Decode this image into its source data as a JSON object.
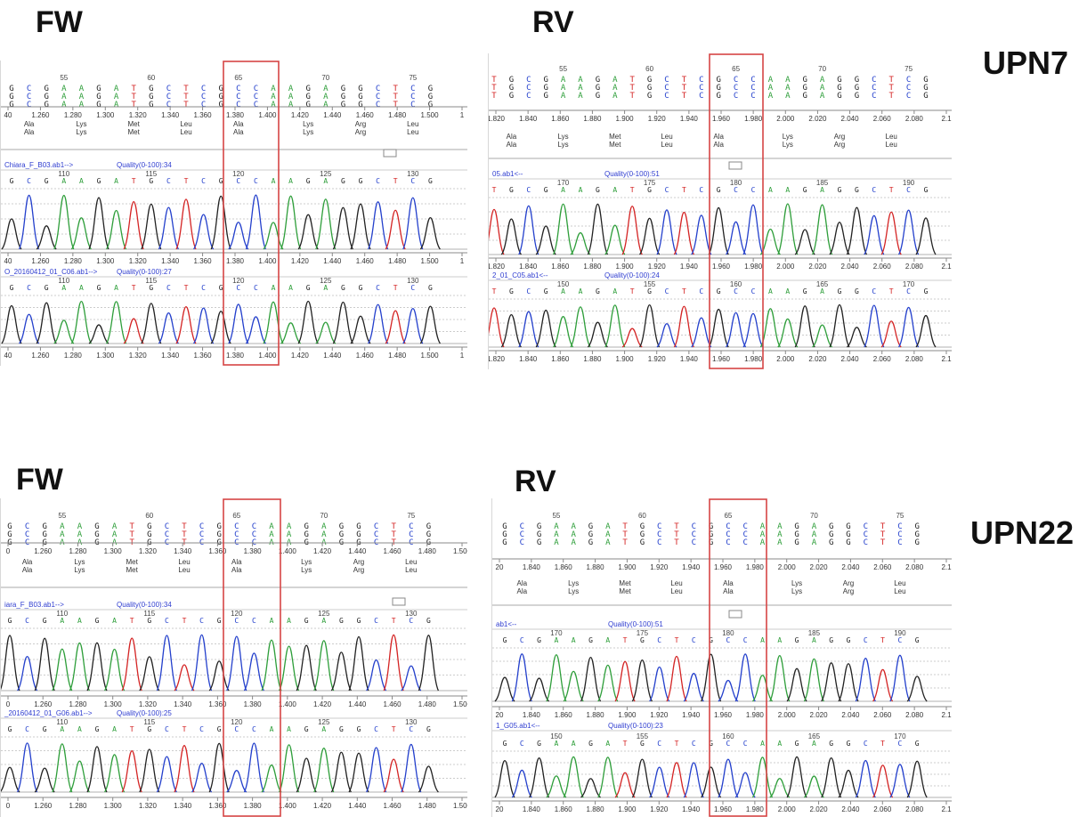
{
  "labels": {
    "fw": "FW",
    "rv": "RV",
    "upn7": "UPN7",
    "upn22": "UPN22"
  },
  "colors": {
    "A": "#2e9e3a",
    "C": "#2440cc",
    "G": "#222222",
    "T": "#d42424",
    "highlight_box": "#d64545",
    "blue_text": "#2f3dd0"
  },
  "sequence": {
    "fw_ref": "GCGAAGATGCTCGCCAAGAGGCTCG",
    "rv_ref": "TGCGAAGATGCTCGCCAAGAGGCTCG",
    "aminos": [
      "Ala",
      "Lys",
      "Met",
      "Leu",
      "Ala",
      "Lys",
      "Arg",
      "Leu"
    ]
  },
  "panels": [
    {
      "id": "upn7-fw",
      "ref_ticks": [
        "55",
        "60",
        "65",
        "70",
        "75"
      ],
      "axis": [
        "40",
        "1.260",
        "1.280",
        "1.300",
        "1.320",
        "1.340",
        "1.360",
        "1.380",
        "1.400",
        "1.420",
        "1.440",
        "1.460",
        "1.480",
        "1.500",
        "1"
      ],
      "trace1": {
        "file": "Chiara_F_B03.ab1-->",
        "quality": "Quality(0-100):34",
        "ticks": [
          "110",
          "115",
          "120",
          "125",
          "130"
        ]
      },
      "trace2": {
        "file": "O_20160412_01_C06.ab1-->",
        "quality": "Quality(0-100):27",
        "ticks": [
          "110",
          "115",
          "120",
          "125",
          "130"
        ]
      }
    },
    {
      "id": "upn7-rv",
      "ref_ticks": [
        "55",
        "60",
        "65",
        "70",
        "75"
      ],
      "axis": [
        "1.820",
        "1.840",
        "1.860",
        "1.880",
        "1.900",
        "1.920",
        "1.940",
        "1.960",
        "1.980",
        "2.000",
        "2.020",
        "2.040",
        "2.060",
        "2.080",
        "2.1"
      ],
      "trace1": {
        "file": "05.ab1<--",
        "quality": "Quality(0-100):51",
        "ticks": [
          "170",
          "175",
          "180",
          "185",
          "190"
        ]
      },
      "trace2": {
        "file": "2_01_C05.ab1<--",
        "quality": "Quality(0-100):24",
        "ticks": [
          "150",
          "155",
          "160",
          "165",
          "170"
        ]
      }
    },
    {
      "id": "upn22-fw",
      "ref_ticks": [
        "55",
        "60",
        "65",
        "70",
        "75"
      ],
      "axis": [
        "0",
        "1.260",
        "1.280",
        "1.300",
        "1.320",
        "1.340",
        "1.360",
        "1.380",
        "1.400",
        "1.420",
        "1.440",
        "1.460",
        "1.480",
        "1.500"
      ],
      "trace1": {
        "file": "iara_F_B03.ab1-->",
        "quality": "Quality(0-100):34",
        "ticks": [
          "110",
          "115",
          "120",
          "125",
          "130"
        ]
      },
      "trace2": {
        "file": "_20160412_01_G06.ab1-->",
        "quality": "Quality(0-100):25",
        "ticks": [
          "110",
          "115",
          "120",
          "125",
          "130"
        ]
      }
    },
    {
      "id": "upn22-rv",
      "ref_ticks": [
        "55",
        "60",
        "65",
        "70",
        "75"
      ],
      "axis": [
        "20",
        "1.840",
        "1.860",
        "1.880",
        "1.900",
        "1.920",
        "1.940",
        "1.960",
        "1.980",
        "2.000",
        "2.020",
        "2.040",
        "2.060",
        "2.080",
        "2.1"
      ],
      "trace1": {
        "file": "ab1<--",
        "quality": "Quality(0-100):51",
        "ticks": [
          "170",
          "175",
          "180",
          "185",
          "190"
        ]
      },
      "trace2": {
        "file": "1_G05.ab1<--",
        "quality": "Quality(0-100):23",
        "ticks": [
          "150",
          "155",
          "160",
          "165",
          "170"
        ]
      }
    }
  ]
}
